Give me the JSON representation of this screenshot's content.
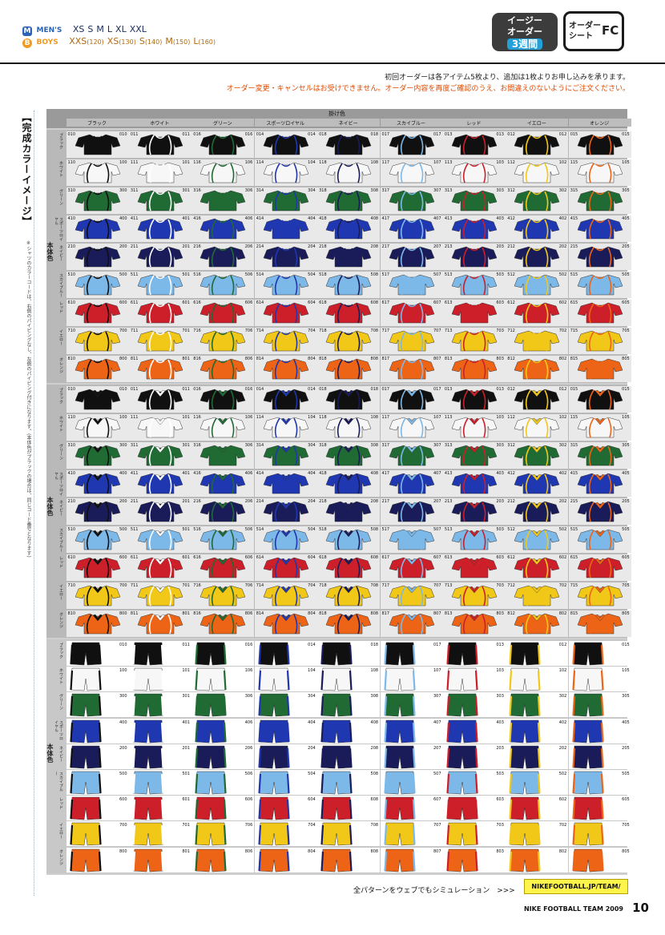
{
  "header": {
    "mens": {
      "badge": "M",
      "label": "MEN'S",
      "sizes": [
        "XS",
        "S",
        "M",
        "L",
        "XL",
        "XXL"
      ]
    },
    "boys": {
      "badge": "B",
      "label": "BOYS",
      "sizes": [
        {
          "size": "XXS",
          "sub": "(120)"
        },
        {
          "size": "XS",
          "sub": "(130)"
        },
        {
          "size": "S",
          "sub": "(140)"
        },
        {
          "size": "M",
          "sub": "(150)"
        },
        {
          "size": "L",
          "sub": "(160)"
        }
      ]
    },
    "easy_order": {
      "line1": "イージー",
      "line2": "オーダー",
      "line3": "3週間"
    },
    "order_sheet": {
      "line1": "オーダー",
      "line2": "シート",
      "code": "FC"
    }
  },
  "notice": {
    "line1": "初回オーダーは各アイテム5枚より、追加は1枚よりお申し込みを承ります。",
    "line2": "オーダー変更・キャンセルはお受けできません。オーダー内容を再度ご確認のうえ、お間違えのないようにご注文ください。"
  },
  "side": {
    "title": "【完成カラーイメージ】",
    "note": "※シャツのカラーコードは、右側のパイピングなし、左側のパイピング付きになります。(本体色がブラックの場合は、同じコード番号となります)"
  },
  "grid": {
    "header_title": "掛け色",
    "body_label": "本体色",
    "trim_colors": [
      "ブラック",
      "ホワイト",
      "グリーン",
      "スポーツロイヤル",
      "ネイビー",
      "スカイブルー",
      "レッド",
      "イエロー",
      "オレンジ"
    ],
    "body_colors": [
      "ブラック",
      "ホワイト",
      "グリーン",
      "スポーツロイヤル",
      "ネイビー",
      "スカイブルー",
      "レッド",
      "イエロー",
      "オレンジ"
    ],
    "colors": {
      "body": [
        "#101010",
        "#f7f7f7",
        "#1f6b33",
        "#1f37b0",
        "#1a1c5a",
        "#7cb8e8",
        "#cc1f2a",
        "#f2c818",
        "#ee6416"
      ],
      "trim": [
        "#101010",
        "#ffffff",
        "#1f6b33",
        "#1f37b0",
        "#1a1c5a",
        "#7cb8e8",
        "#cc1f2a",
        "#f2c818",
        "#ee6416"
      ]
    },
    "shirt_rows": [
      [
        [
          "010",
          "010"
        ],
        [
          "011",
          "011"
        ],
        [
          "016",
          "016"
        ],
        [
          "014",
          "014"
        ],
        [
          "018",
          "018"
        ],
        [
          "017",
          "017"
        ],
        [
          "013",
          "013"
        ],
        [
          "012",
          "012"
        ],
        [
          "015",
          "015"
        ]
      ],
      [
        [
          "110",
          "100"
        ],
        [
          "111",
          "101"
        ],
        [
          "116",
          "106"
        ],
        [
          "114",
          "104"
        ],
        [
          "118",
          "108"
        ],
        [
          "117",
          "107"
        ],
        [
          "113",
          "103"
        ],
        [
          "112",
          "102"
        ],
        [
          "115",
          "105"
        ]
      ],
      [
        [
          "310",
          "300"
        ],
        [
          "311",
          "301"
        ],
        [
          "316",
          "306"
        ],
        [
          "314",
          "304"
        ],
        [
          "318",
          "308"
        ],
        [
          "317",
          "307"
        ],
        [
          "313",
          "303"
        ],
        [
          "312",
          "302"
        ],
        [
          "315",
          "305"
        ]
      ],
      [
        [
          "410",
          "400"
        ],
        [
          "411",
          "401"
        ],
        [
          "416",
          "406"
        ],
        [
          "414",
          "404"
        ],
        [
          "418",
          "408"
        ],
        [
          "417",
          "407"
        ],
        [
          "413",
          "403"
        ],
        [
          "412",
          "402"
        ],
        [
          "415",
          "405"
        ]
      ],
      [
        [
          "210",
          "200"
        ],
        [
          "211",
          "201"
        ],
        [
          "216",
          "206"
        ],
        [
          "214",
          "204"
        ],
        [
          "218",
          "208"
        ],
        [
          "217",
          "207"
        ],
        [
          "213",
          "203"
        ],
        [
          "212",
          "202"
        ],
        [
          "215",
          "205"
        ]
      ],
      [
        [
          "510",
          "500"
        ],
        [
          "511",
          "501"
        ],
        [
          "516",
          "506"
        ],
        [
          "514",
          "504"
        ],
        [
          "518",
          "508"
        ],
        [
          "517",
          "507"
        ],
        [
          "513",
          "503"
        ],
        [
          "512",
          "502"
        ],
        [
          "515",
          "505"
        ]
      ],
      [
        [
          "610",
          "600"
        ],
        [
          "611",
          "601"
        ],
        [
          "616",
          "606"
        ],
        [
          "614",
          "604"
        ],
        [
          "618",
          "608"
        ],
        [
          "617",
          "607"
        ],
        [
          "613",
          "603"
        ],
        [
          "612",
          "602"
        ],
        [
          "615",
          "605"
        ]
      ],
      [
        [
          "710",
          "700"
        ],
        [
          "711",
          "701"
        ],
        [
          "716",
          "706"
        ],
        [
          "714",
          "704"
        ],
        [
          "718",
          "708"
        ],
        [
          "717",
          "707"
        ],
        [
          "713",
          "703"
        ],
        [
          "712",
          "702"
        ],
        [
          "715",
          "705"
        ]
      ],
      [
        [
          "810",
          "800"
        ],
        [
          "811",
          "801"
        ],
        [
          "816",
          "806"
        ],
        [
          "814",
          "804"
        ],
        [
          "818",
          "808"
        ],
        [
          "817",
          "807"
        ],
        [
          "813",
          "803"
        ],
        [
          "812",
          "802"
        ],
        [
          "815",
          "805"
        ]
      ]
    ],
    "pant_rows": [
      [
        "010",
        "011",
        "016",
        "014",
        "018",
        "017",
        "013",
        "012",
        "015"
      ],
      [
        "100",
        "101",
        "106",
        "104",
        "108",
        "107",
        "103",
        "102",
        "105"
      ],
      [
        "300",
        "301",
        "306",
        "304",
        "308",
        "307",
        "303",
        "302",
        "305"
      ],
      [
        "400",
        "401",
        "406",
        "404",
        "408",
        "407",
        "403",
        "402",
        "405"
      ],
      [
        "200",
        "201",
        "206",
        "204",
        "208",
        "207",
        "203",
        "202",
        "205"
      ],
      [
        "500",
        "501",
        "506",
        "504",
        "508",
        "507",
        "503",
        "502",
        "505"
      ],
      [
        "600",
        "601",
        "606",
        "604",
        "608",
        "607",
        "603",
        "602",
        "605"
      ],
      [
        "700",
        "701",
        "706",
        "704",
        "708",
        "707",
        "703",
        "702",
        "705"
      ],
      [
        "800",
        "801",
        "806",
        "804",
        "808",
        "807",
        "803",
        "802",
        "805"
      ]
    ],
    "tag_text": "カラー\nバリエーション"
  },
  "footer": {
    "simulation_text": "全パターンをウェブでもシミュレーション　>>>",
    "url": "NIKEFOOTBALL.JP/TEAM/",
    "catalog": "NIKE FOOTBALL TEAM 2009",
    "page": "10"
  }
}
